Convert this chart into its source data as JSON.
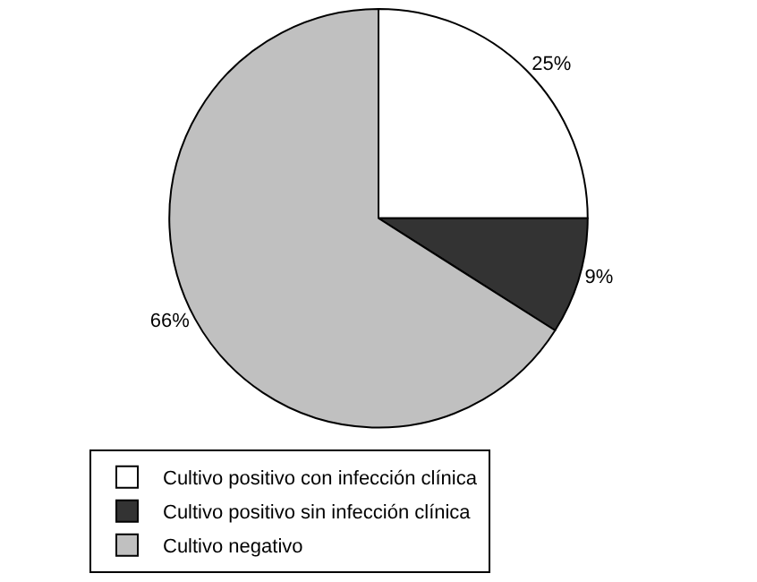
{
  "chart_data": {
    "type": "pie",
    "categories": [
      "Cultivo positivo con infección clínica",
      "Cultivo positivo sin infección clínica",
      "Cultivo negativo"
    ],
    "values": [
      25,
      9,
      66
    ],
    "colors": [
      "#ffffff",
      "#333333",
      "#c0c0c0"
    ],
    "value_labels": [
      "25%",
      "9%",
      "66%"
    ],
    "legend": "bottom"
  }
}
